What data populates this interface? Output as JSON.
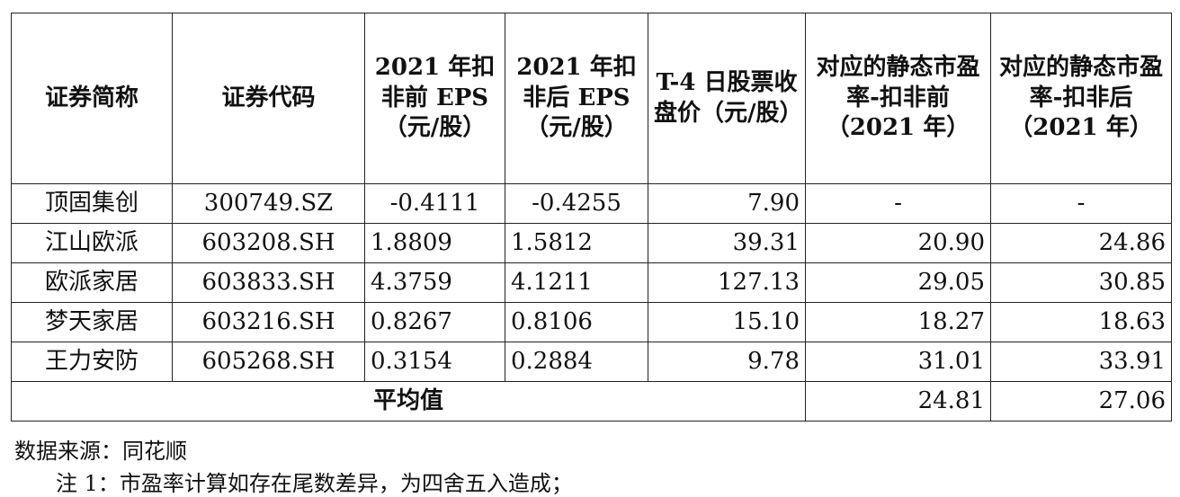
{
  "table": {
    "headers": [
      "证券简称",
      "证券代码",
      "2021 年扣非前 EPS（元/股）",
      "2021 年扣非后 EPS（元/股）",
      "T-4 日股票收盘价（元/股）",
      "对应的静态市盈率-扣非前（2021 年）",
      "对应的静态市盈率-扣非后（2021 年）"
    ],
    "rows": [
      [
        "顶固集创",
        "300749.SZ",
        "-0.4111",
        "-0.4255",
        "7.90",
        "-",
        "-"
      ],
      [
        "江山欧派",
        "603208.SH",
        "1.8809",
        "1.5812",
        "39.31",
        "20.90",
        "24.86"
      ],
      [
        "欧派家居",
        "603833.SH",
        "4.3759",
        "4.1211",
        "127.13",
        "29.05",
        "30.85"
      ],
      [
        "梦天家居",
        "603216.SH",
        "0.8267",
        "0.8106",
        "15.10",
        "18.27",
        "18.63"
      ],
      [
        "王力安防",
        "605268.SH",
        "0.3154",
        "0.2884",
        "9.78",
        "31.01",
        "33.91"
      ]
    ],
    "average": {
      "label": "平均值",
      "pe_before": "24.81",
      "pe_after": "27.06"
    }
  },
  "notes": {
    "source": "数据来源：同花顺",
    "note1": "注 1：市盈率计算如存在尾数差异，为四舍五入造成；"
  }
}
